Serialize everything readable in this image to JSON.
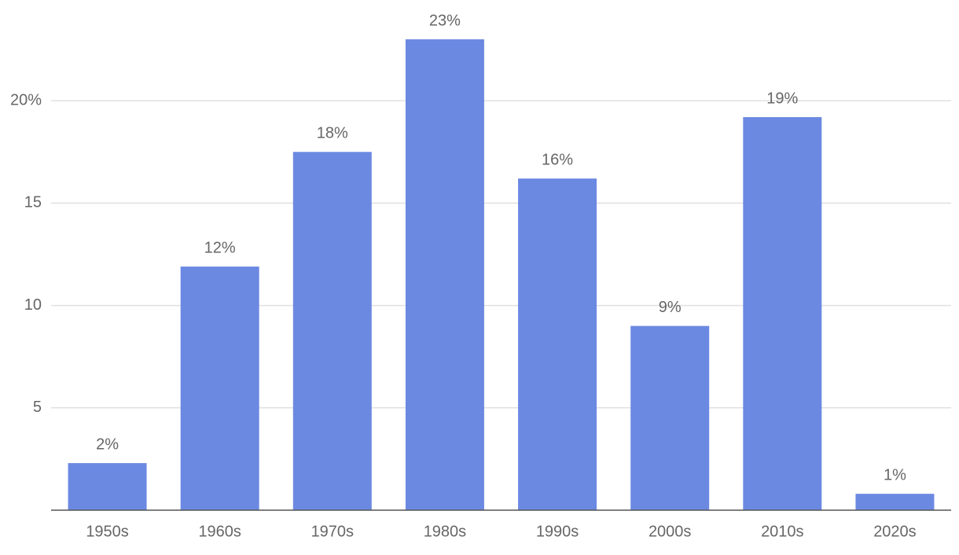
{
  "chart_data": {
    "type": "bar",
    "categories": [
      "1950s",
      "1960s",
      "1970s",
      "1980s",
      "1990s",
      "2000s",
      "2010s",
      "2020s"
    ],
    "values": [
      2.3,
      11.9,
      17.5,
      23.0,
      16.2,
      9.0,
      19.2,
      0.8
    ],
    "value_labels": [
      "2%",
      "12%",
      "18%",
      "23%",
      "16%",
      "9%",
      "19%",
      "1%"
    ],
    "color": "#6c89e2",
    "ylim": [
      0,
      23.5
    ],
    "yticks": [
      5,
      10,
      15,
      {
        "value": 20,
        "label": "20%"
      }
    ],
    "grid": true
  }
}
